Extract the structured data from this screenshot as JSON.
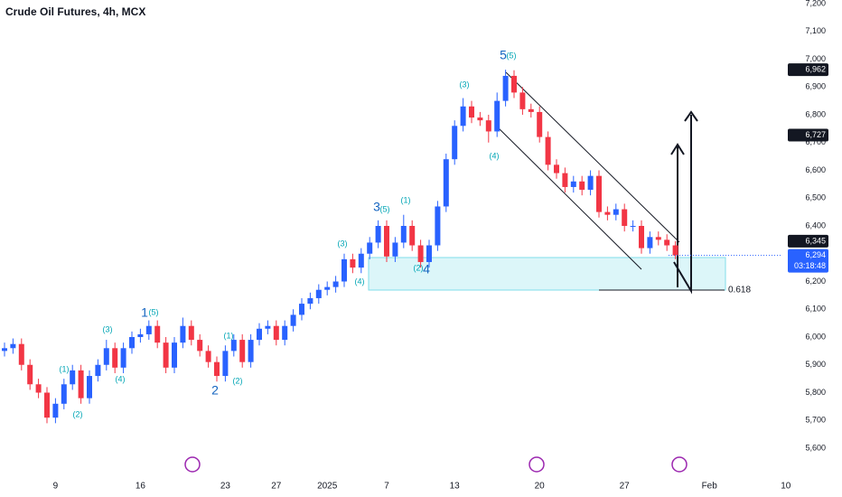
{
  "chart_data": {
    "type": "candlestick",
    "title": "Crude Oil Futures, 4h, MCX",
    "categories": [
      null,
      null,
      null,
      null,
      null,
      null,
      "9",
      null,
      null,
      null,
      null,
      null,
      null,
      null,
      null,
      null,
      "16",
      null,
      null,
      null,
      null,
      null,
      null,
      null,
      null,
      null,
      "23",
      null,
      null,
      null,
      null,
      null,
      "27",
      null,
      null,
      null,
      null,
      null,
      "2025",
      null,
      null,
      null,
      null,
      null,
      null,
      "7",
      null,
      null,
      null,
      null,
      null,
      null,
      null,
      "13",
      null,
      null,
      null,
      null,
      null,
      null,
      null,
      null,
      null,
      "20",
      null,
      null,
      null,
      null,
      null,
      null,
      null,
      null,
      null,
      "27",
      null,
      null,
      null,
      null,
      null,
      null,
      null,
      null,
      null,
      "Feb",
      null,
      null,
      null,
      null,
      null,
      null,
      null,
      null,
      "10"
    ],
    "open": [
      5950,
      5960,
      5975,
      5900,
      5830,
      5800,
      5710,
      5760,
      5830,
      5880,
      5780,
      5860,
      5900,
      5960,
      5890,
      5960,
      6000,
      6010,
      6040,
      5980,
      5890,
      5980,
      6040,
      5990,
      5950,
      5910,
      5860,
      5950,
      5990,
      5910,
      5990,
      6030,
      6040,
      5990,
      6040,
      6080,
      6120,
      6140,
      6170,
      6180,
      6200,
      6280,
      6250,
      6300,
      6340,
      6400,
      6290,
      6340,
      6400,
      6330,
      6270,
      6330,
      6470,
      6640,
      6760,
      6830,
      6790,
      6780,
      6740,
      6850,
      6940,
      6880,
      6820,
      6810,
      6720,
      6620,
      6590,
      6540,
      6560,
      6530,
      6580,
      6450,
      6440,
      6460,
      6400,
      6400,
      6320,
      6360,
      6350,
      6330,
      null,
      null,
      null,
      null,
      null,
      null,
      null,
      null,
      null,
      null,
      null,
      null,
      null
    ],
    "high": [
      5980,
      5995,
      5995,
      5920,
      5850,
      5820,
      5780,
      5850,
      5900,
      5900,
      5880,
      5920,
      5990,
      5980,
      5980,
      6020,
      6030,
      6060,
      6060,
      6000,
      6000,
      6070,
      6060,
      6010,
      5970,
      5930,
      5970,
      6010,
      6010,
      6010,
      6050,
      6060,
      6060,
      6060,
      6100,
      6140,
      6160,
      6190,
      6200,
      6220,
      6300,
      6300,
      6320,
      6360,
      6420,
      6420,
      6360,
      6440,
      6420,
      6350,
      6350,
      6490,
      6660,
      6780,
      6860,
      6850,
      6810,
      6800,
      6880,
      6962,
      6960,
      6900,
      6840,
      6830,
      6740,
      6640,
      6610,
      6580,
      6580,
      6600,
      6600,
      6470,
      6480,
      6480,
      6420,
      6420,
      6380,
      6380,
      6370,
      6345,
      null,
      null,
      null,
      null,
      null,
      null,
      null,
      null,
      null,
      null,
      null,
      null,
      null
    ],
    "low": [
      5930,
      5940,
      5880,
      5810,
      5780,
      5690,
      5690,
      5740,
      5810,
      5760,
      5760,
      5840,
      5880,
      5870,
      5870,
      5940,
      5980,
      5990,
      5960,
      5870,
      5870,
      5960,
      5970,
      5930,
      5890,
      5840,
      5840,
      5930,
      5890,
      5890,
      5970,
      6010,
      5970,
      5970,
      6020,
      6060,
      6100,
      6120,
      6150,
      6160,
      6180,
      6230,
      6230,
      6280,
      6320,
      6270,
      6270,
      6320,
      6310,
      6250,
      6250,
      6310,
      6450,
      6620,
      6740,
      6770,
      6760,
      6700,
      6720,
      6830,
      6860,
      6800,
      6790,
      6700,
      6600,
      6570,
      6520,
      6520,
      6510,
      6510,
      6430,
      6420,
      6420,
      6380,
      6380,
      6300,
      6300,
      6330,
      6310,
      6280,
      null,
      null,
      null,
      null,
      null,
      null,
      null,
      null,
      null,
      null,
      null,
      null,
      null
    ],
    "close": [
      5960,
      5975,
      5900,
      5830,
      5800,
      5710,
      5760,
      5830,
      5880,
      5780,
      5860,
      5900,
      5960,
      5890,
      5960,
      6000,
      6010,
      6040,
      5980,
      5890,
      5980,
      6040,
      5990,
      5950,
      5910,
      5860,
      5950,
      5990,
      5910,
      5990,
      6030,
      6040,
      5990,
      6040,
      6080,
      6120,
      6140,
      6170,
      6180,
      6200,
      6280,
      6250,
      6300,
      6340,
      6400,
      6290,
      6340,
      6400,
      6330,
      6270,
      6330,
      6470,
      6640,
      6760,
      6830,
      6790,
      6780,
      6740,
      6850,
      6940,
      6880,
      6820,
      6810,
      6720,
      6620,
      6590,
      6540,
      6560,
      6530,
      6580,
      6450,
      6440,
      6460,
      6400,
      6400,
      6320,
      6360,
      6350,
      6330,
      6294,
      null,
      null,
      null,
      null,
      null,
      null,
      null,
      null,
      null,
      null,
      null,
      null,
      null
    ],
    "up_color": "#2962ff",
    "down_color": "#f23645",
    "ylim": [
      5600,
      7200
    ],
    "yticks": [
      {
        "value": 5600,
        "label": "5,600"
      },
      {
        "value": 5700,
        "label": "5,700"
      },
      {
        "value": 5800,
        "label": "5,800"
      },
      {
        "value": 5900,
        "label": "5,900"
      },
      {
        "value": 6000,
        "label": "6,000"
      },
      {
        "value": 6100,
        "label": "6,100"
      },
      {
        "value": 6200,
        "label": "6,200"
      },
      {
        "value": 6300,
        "label": "6,300"
      },
      {
        "value": 6400,
        "label": "6,400"
      },
      {
        "value": 6500,
        "label": "6,500"
      },
      {
        "value": 6600,
        "label": "6,600"
      },
      {
        "value": 6700,
        "label": "6,700"
      },
      {
        "value": 6800,
        "label": "6,800"
      },
      {
        "value": 6900,
        "label": "6,900"
      },
      {
        "value": 7000,
        "label": "7,000"
      },
      {
        "value": 7100,
        "label": "7,100"
      },
      {
        "value": 7200,
        "label": "7,200"
      }
    ],
    "price_labels": [
      {
        "value": 6962,
        "label": "6,962"
      },
      {
        "value": 6727,
        "label": "6,727"
      },
      {
        "value": 6345,
        "label": "6,345"
      }
    ],
    "last_price": {
      "value": 6294,
      "label": "6,294",
      "countdown": "03:18:48"
    },
    "annotations": [
      "(1)",
      "(2)",
      "(3)",
      "(4)",
      "1",
      "(5)",
      "2",
      "(1)",
      "(2)",
      "(3)",
      "(4)",
      "3",
      "(5)",
      "(1)",
      "(2)",
      "4",
      "(3)",
      "(4)",
      "5",
      "(5)"
    ],
    "fib_label": "0.618",
    "grid": false
  }
}
